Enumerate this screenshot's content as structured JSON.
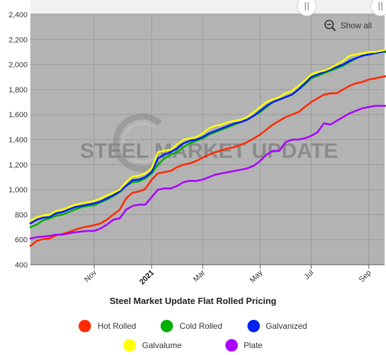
{
  "chart_data": {
    "type": "line",
    "title": "Steel Market Update Flat Rolled Pricing",
    "watermark": "STEEL MARKET UPDATE",
    "show_all_label": "Show all",
    "ylim": [
      400,
      2400
    ],
    "y_ticks": [
      "400",
      "600",
      "800",
      "1,000",
      "1,200",
      "1,400",
      "1,600",
      "1,800",
      "2,000",
      "2,200",
      "2,400"
    ],
    "x_ticks": [
      {
        "label": "Nov",
        "week": 10
      },
      {
        "label": "2021",
        "week": 19,
        "bold": true
      },
      {
        "label": "Mar",
        "week": 27
      },
      {
        "label": "May",
        "week": 36
      },
      {
        "label": "Jul",
        "week": 44
      },
      {
        "label": "Sep",
        "week": 53
      }
    ],
    "x_range": [
      0,
      55.5
    ],
    "legend_position": "bottom",
    "colors": {
      "plot_background": "#b3b3b3",
      "navigator_background": "#f2f2f2",
      "gridline": "#9a9a9a"
    },
    "series": [
      {
        "name": "Hot Rolled",
        "color": "#ff2a00",
        "values": [
          550,
          590,
          605,
          610,
          635,
          645,
          660,
          680,
          695,
          705,
          715,
          730,
          760,
          800,
          840,
          930,
          975,
          985,
          1005,
          1080,
          1130,
          1140,
          1150,
          1180,
          1200,
          1210,
          1230,
          1255,
          1280,
          1300,
          1315,
          1330,
          1340,
          1360,
          1380,
          1410,
          1440,
          1480,
          1520,
          1550,
          1580,
          1600,
          1620,
          1660,
          1700,
          1730,
          1760,
          1770,
          1770,
          1800,
          1830,
          1850,
          1860,
          1880,
          1890,
          1900,
          1910,
          1920,
          1930,
          1940,
          1950,
          1945
        ]
      },
      {
        "name": "Cold Rolled",
        "color": "#00b000",
        "values": [
          700,
          720,
          755,
          770,
          790,
          800,
          820,
          840,
          860,
          870,
          875,
          900,
          920,
          950,
          980,
          1030,
          1060,
          1065,
          1090,
          1130,
          1200,
          1250,
          1280,
          1300,
          1340,
          1370,
          1390,
          1410,
          1440,
          1460,
          1480,
          1500,
          1520,
          1540,
          1560,
          1590,
          1620,
          1660,
          1700,
          1720,
          1740,
          1760,
          1800,
          1840,
          1890,
          1910,
          1930,
          1950,
          1970,
          1990,
          2020,
          2050,
          2070,
          2080,
          2090,
          2100,
          2100,
          2090,
          2080,
          2100,
          2130,
          2130
        ]
      },
      {
        "name": "Galvanized",
        "color": "#0022ee",
        "values": [
          730,
          760,
          775,
          780,
          810,
          820,
          840,
          860,
          870,
          880,
          890,
          905,
          930,
          955,
          985,
          1030,
          1075,
          1080,
          1100,
          1140,
          1250,
          1280,
          1300,
          1330,
          1370,
          1390,
          1400,
          1420,
          1450,
          1470,
          1490,
          1510,
          1530,
          1540,
          1560,
          1590,
          1630,
          1670,
          1700,
          1720,
          1740,
          1760,
          1800,
          1850,
          1900,
          1920,
          1940,
          1960,
          1980,
          2000,
          2030,
          2050,
          2070,
          2080,
          2090,
          2100,
          2110,
          2100,
          2080,
          2100,
          2150,
          2150
        ]
      },
      {
        "name": "Galvalume",
        "color": "#ffff00",
        "values": [
          750,
          780,
          795,
          800,
          830,
          840,
          860,
          880,
          890,
          900,
          910,
          930,
          955,
          975,
          1000,
          1060,
          1105,
          1110,
          1130,
          1170,
          1300,
          1310,
          1320,
          1360,
          1400,
          1410,
          1420,
          1450,
          1490,
          1510,
          1520,
          1540,
          1550,
          1560,
          1580,
          1620,
          1660,
          1700,
          1720,
          1740,
          1770,
          1790,
          1830,
          1870,
          1920,
          1940,
          1950,
          1970,
          2000,
          2030,
          2070,
          2080,
          2090,
          2100,
          2100,
          2110,
          2120,
          2130,
          2130,
          2110,
          2100,
          2080
        ]
      },
      {
        "name": "Plate",
        "color": "#aa00ff",
        "values": [
          610,
          620,
          625,
          630,
          640,
          640,
          650,
          660,
          665,
          670,
          670,
          690,
          720,
          760,
          770,
          840,
          870,
          880,
          880,
          940,
          1000,
          1010,
          1010,
          1030,
          1060,
          1070,
          1070,
          1080,
          1100,
          1120,
          1130,
          1140,
          1150,
          1160,
          1170,
          1190,
          1230,
          1280,
          1310,
          1310,
          1380,
          1400,
          1400,
          1410,
          1430,
          1460,
          1530,
          1520,
          1550,
          1580,
          1610,
          1630,
          1650,
          1660,
          1670,
          1670,
          1670,
          1680,
          1770,
          1775,
          1770,
          1750
        ]
      }
    ]
  }
}
